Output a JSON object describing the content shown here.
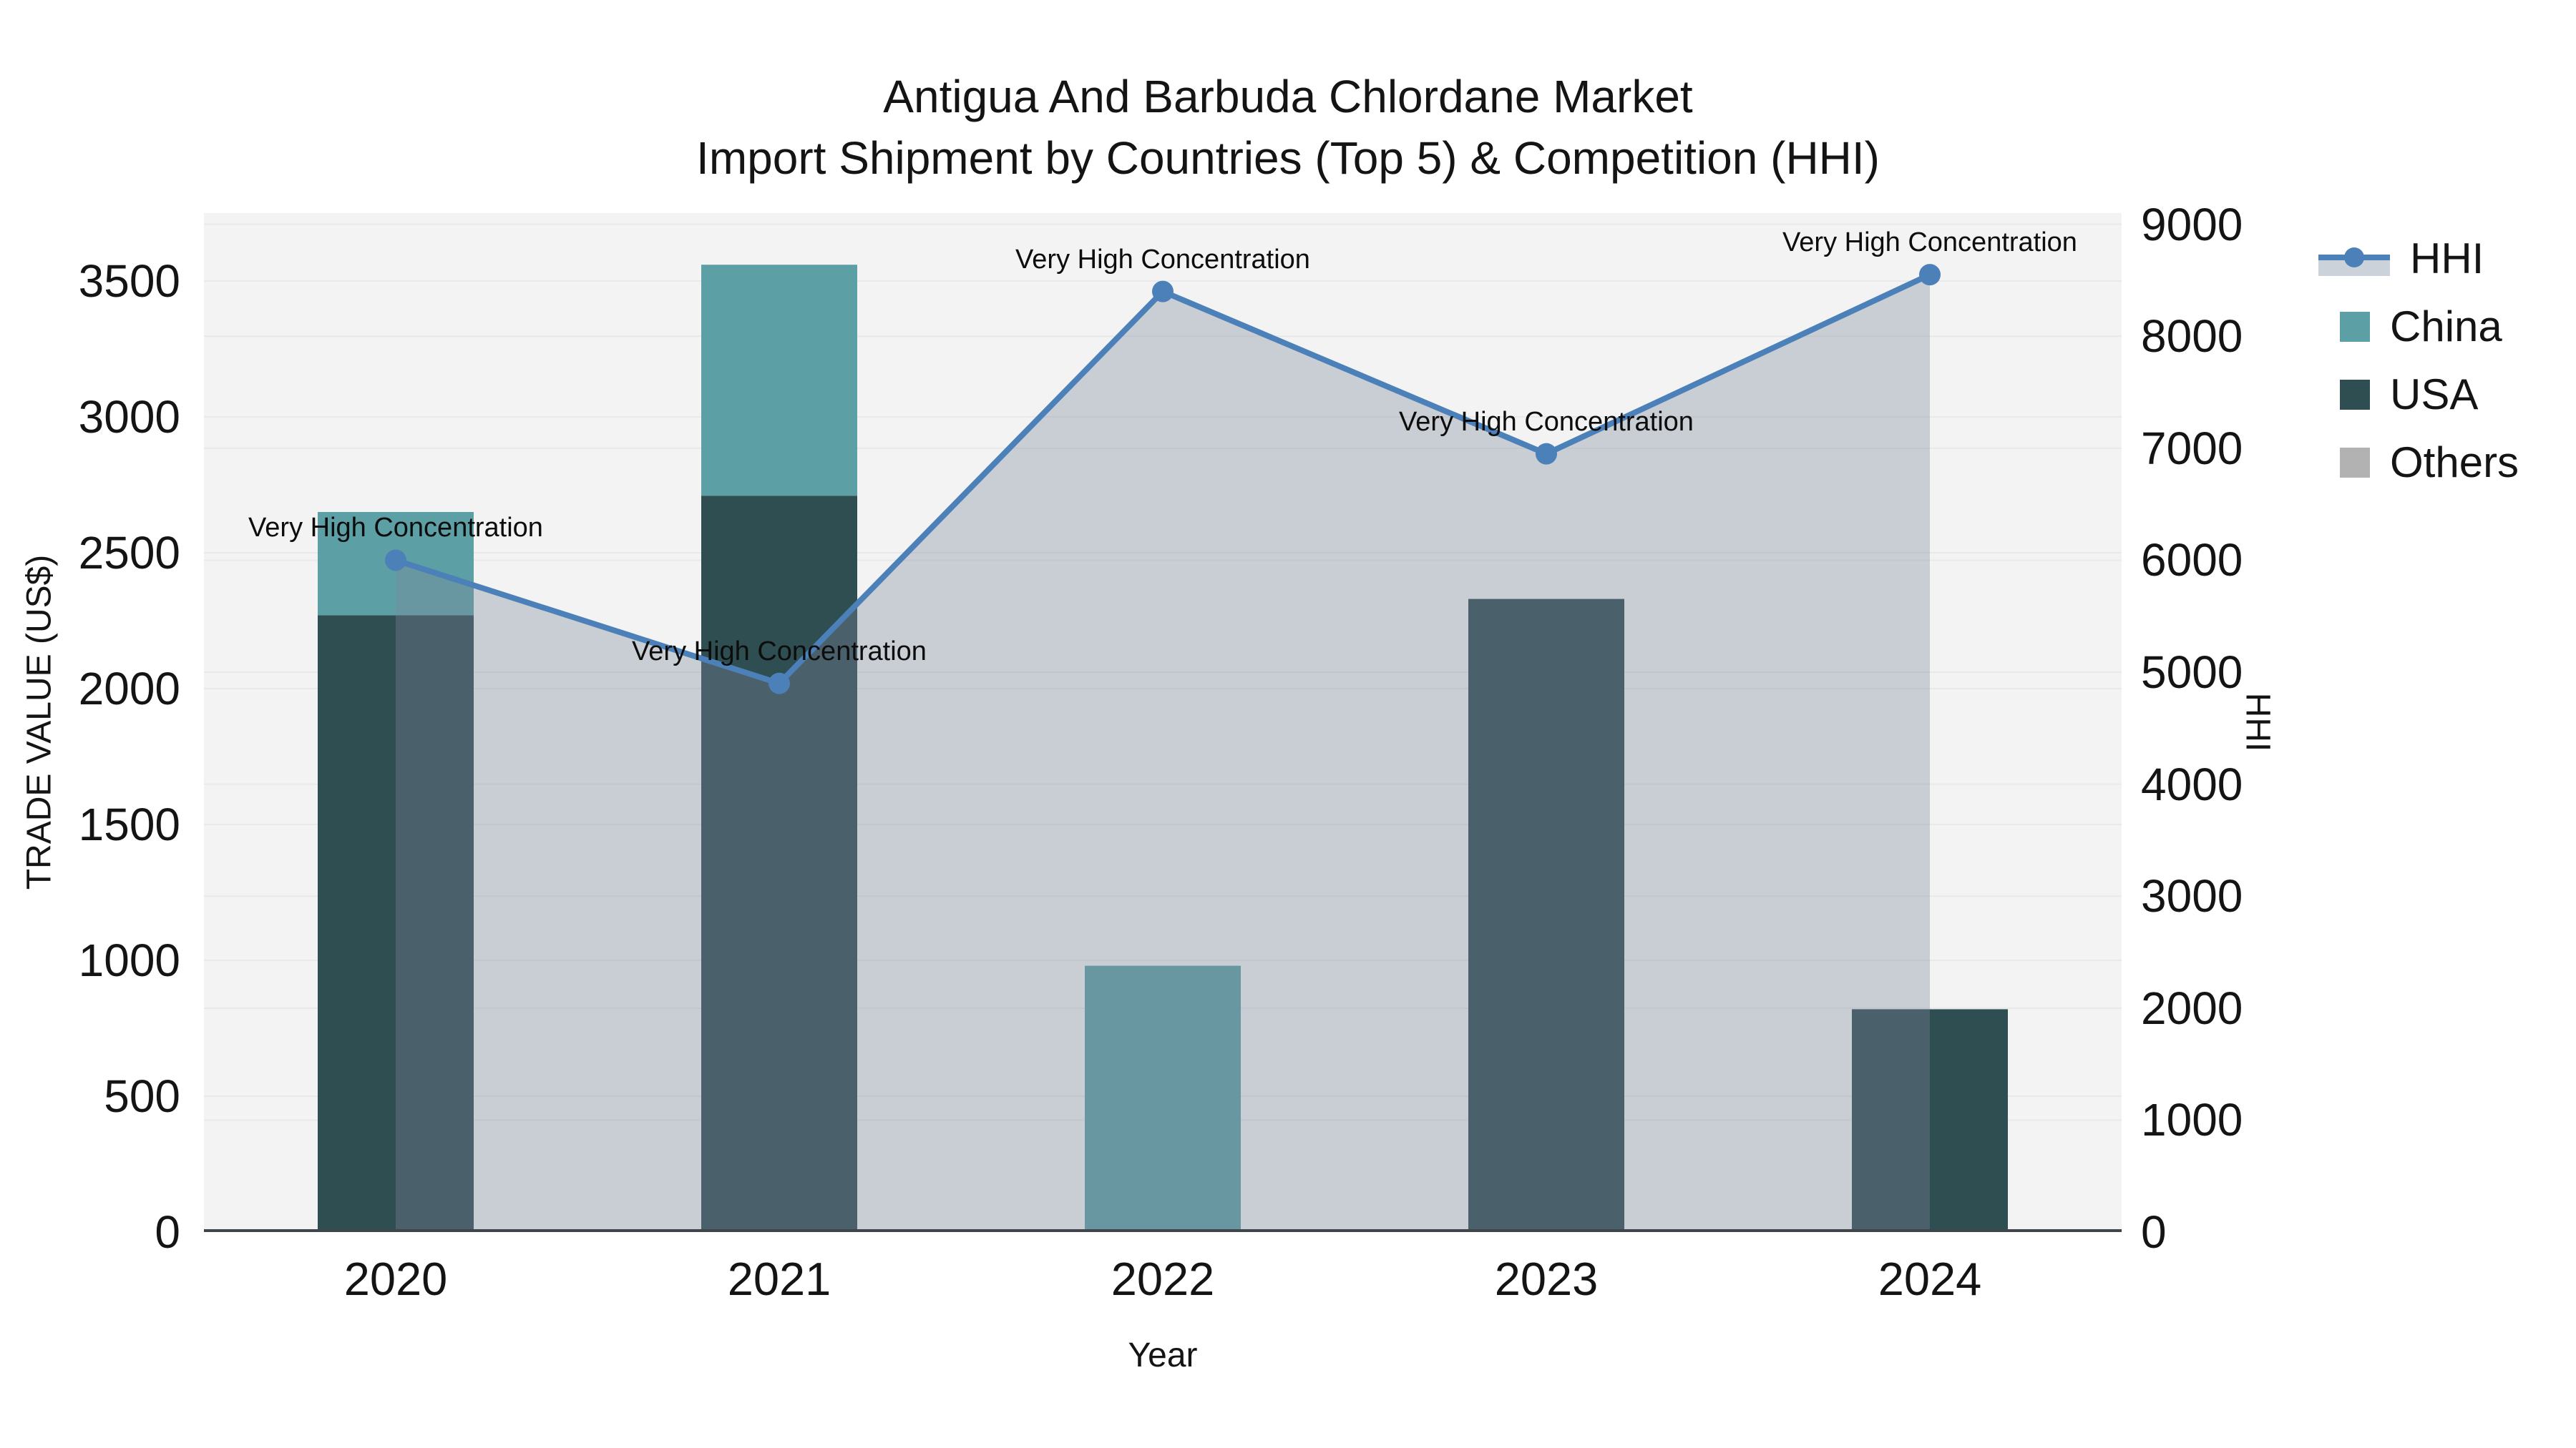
{
  "title": {
    "line1": "Antigua And Barbuda Chlordane Market",
    "line2": "Import Shipment by Countries (Top 5) & Competition (HHI)"
  },
  "axes": {
    "x_title": "Year",
    "y_left_title": "TRADE VALUE (US$)",
    "y_right_title": "HHI",
    "x_tick_labels": [
      "2020",
      "2021",
      "2022",
      "2023",
      "2024"
    ],
    "y_left_tick_labels": [
      "0",
      "500",
      "1000",
      "1500",
      "2000",
      "2500",
      "3000",
      "3500"
    ],
    "y_right_tick_labels": [
      "0",
      "1000",
      "2000",
      "3000",
      "4000",
      "5000",
      "6000",
      "7000",
      "8000",
      "9000"
    ]
  },
  "legend": {
    "items": [
      {
        "label": "HHI",
        "type": "line",
        "color": "#4b80b8"
      },
      {
        "label": "China",
        "type": "swatch",
        "color": "#5c9fa4"
      },
      {
        "label": "USA",
        "type": "swatch",
        "color": "#2f4e52"
      },
      {
        "label": "Others",
        "type": "swatch",
        "color": "#b2b2b2"
      }
    ]
  },
  "colors": {
    "page_bg": "#ffffff",
    "plot_bg": "#f2f3f2",
    "gridline": "#e8e9ea",
    "baseline": "#3f454a",
    "hhi_line": "#4b80b8",
    "hhi_area_fill": "rgba(125,134,159,0.35)",
    "china_bar": "#5c9fa4",
    "usa_bar": "#2f4e52",
    "others_bar": "#b2b2b2"
  },
  "chart_data": {
    "type": "bar+line",
    "title": "Antigua And Barbuda Chlordane Market — Import Shipment by Countries (Top 5) & Competition (HHI)",
    "xlabel": "Year",
    "ylabel_left": "TRADE VALUE (US$)",
    "ylabel_right": "HHI",
    "categories": [
      "2020",
      "2021",
      "2022",
      "2023",
      "2024"
    ],
    "series": [
      {
        "name": "USA",
        "type": "bar",
        "stack": "trade",
        "axis": "left",
        "color": "#2f4e52",
        "values": [
          2270,
          2710,
          0,
          2330,
          820
        ]
      },
      {
        "name": "China",
        "type": "bar",
        "stack": "trade",
        "axis": "left",
        "color": "#5c9fa4",
        "values": [
          380,
          850,
          980,
          0,
          0
        ]
      },
      {
        "name": "Others",
        "type": "bar",
        "stack": "trade",
        "axis": "left",
        "color": "#b2b2b2",
        "values": [
          0,
          0,
          0,
          0,
          0
        ]
      },
      {
        "name": "HHI",
        "type": "line",
        "axis": "right",
        "color": "#4b80b8",
        "area_fill": "rgba(125,134,159,0.35)",
        "values": [
          6000,
          4900,
          8400,
          6950,
          8550
        ]
      }
    ],
    "annotations": [
      {
        "x": "2020",
        "y_hhi": 6000,
        "text": "Very High Concentration"
      },
      {
        "x": "2021",
        "y_hhi": 4900,
        "text": "Very High Concentration"
      },
      {
        "x": "2022",
        "y_hhi": 8400,
        "text": "Very High Concentration"
      },
      {
        "x": "2023",
        "y_hhi": 6950,
        "text": "Very High Concentration"
      },
      {
        "x": "2024",
        "y_hhi": 8550,
        "text": "Very High Concentration"
      }
    ],
    "ylim_left": [
      0,
      3750
    ],
    "ylim_right": [
      0,
      9100
    ],
    "yticks_left": [
      0,
      500,
      1000,
      1500,
      2000,
      2500,
      3000,
      3500
    ],
    "yticks_right": [
      0,
      1000,
      2000,
      3000,
      4000,
      5000,
      6000,
      7000,
      8000,
      9000
    ],
    "grid": true,
    "legend_position": "right"
  }
}
